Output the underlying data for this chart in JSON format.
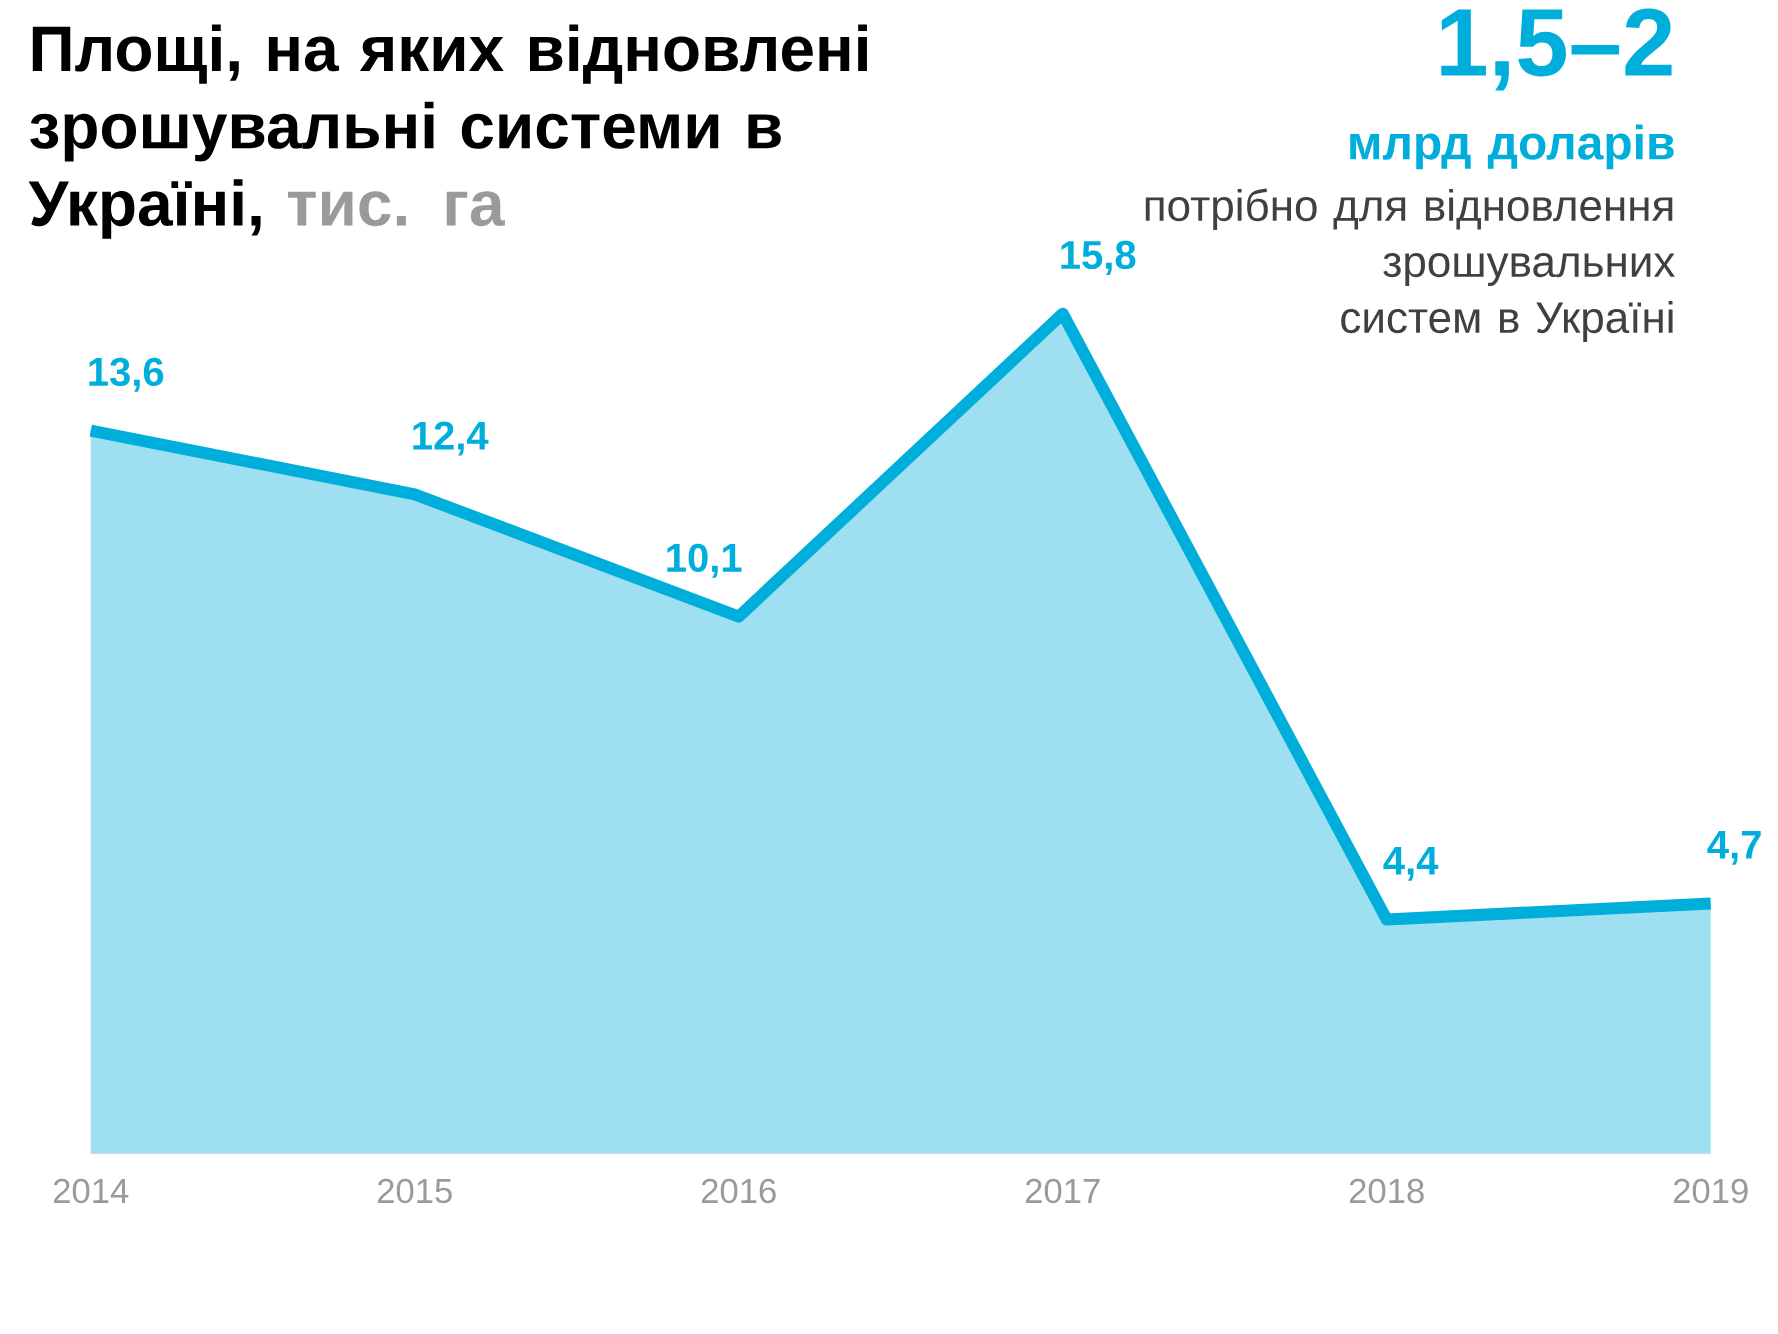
{
  "chart_data": {
    "type": "area",
    "title": "Площі, на яких відновлені зрошувальні системи в Україні,",
    "ylabel": "тис. га",
    "categories": [
      "2014",
      "2015",
      "2016",
      "2017",
      "2018",
      "2019"
    ],
    "values": [
      13.6,
      12.4,
      10.1,
      15.8,
      4.4,
      4.7
    ],
    "value_labels": [
      "13,6",
      "12,4",
      "10,1",
      "15,8",
      "4,4",
      "4,7"
    ],
    "color": "#00aedb",
    "annotations": [
      "1,5–2",
      "млрд доларів",
      "потрібно для відновлення зрошувальних систем в Україні"
    ]
  }
}
